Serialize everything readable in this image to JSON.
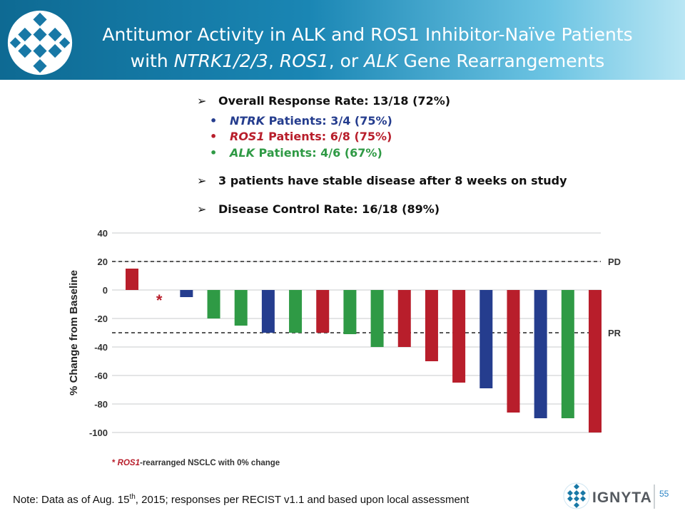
{
  "slide": {
    "title_line1": "Antitumor Activity in ALK and ROS1 Inhibitor-Naïve Patients",
    "title_line2_prefix": "with ",
    "title_line2_italic1": "NTRK1/2/3",
    "title_line2_sep1": ", ",
    "title_line2_italic2": "ROS1",
    "title_line2_sep2": ", or ",
    "title_line2_italic3": "ALK",
    "title_line2_suffix": " Gene Rearrangements",
    "page_number": "55",
    "brand_name": "IGNYTA",
    "footnote_prefix": "Note: Data as of Aug. 15",
    "footnote_sup": "th",
    "footnote_suffix": ", 2015; responses per RECIST v1.1 and based upon local assessment"
  },
  "bullets": {
    "arrow_glyph": "➢",
    "dot_glyph": "•",
    "orr": "Overall Response Rate: 13/18 (72%)",
    "ntrk_name": "NTRK",
    "ntrk_text": " Patients: 3/4 (75%)",
    "ros1_name": "ROS1",
    "ros1_text": " Patients: 6/8 (75%)",
    "alk_name": "ALK",
    "alk_text": " Patients: 4/6 (67%)",
    "stable": "3 patients have stable disease after 8 weeks on study",
    "dcr": "Disease Control Rate: 16/18 (89%)"
  },
  "colors": {
    "NTRK": "#253d8e",
    "ROS1": "#b81e2b",
    "ALK": "#2f9a45",
    "header_start": "#0e6a93",
    "header_end": "#b9e6f4"
  },
  "chart_data": {
    "type": "bar",
    "ylabel": "% Change from Baseline",
    "ylim": [
      -100,
      40
    ],
    "yticks": [
      40,
      20,
      0,
      -20,
      -40,
      -60,
      -80,
      -100
    ],
    "gridlines": true,
    "reference_lines": [
      {
        "label": "PD",
        "value": 20
      },
      {
        "label": "PR",
        "value": -30
      }
    ],
    "bars": [
      {
        "value": 15,
        "group": "ROS1"
      },
      {
        "value": 0,
        "group": "ROS1",
        "marker": "*"
      },
      {
        "value": -5,
        "group": "NTRK"
      },
      {
        "value": -20,
        "group": "ALK"
      },
      {
        "value": -25,
        "group": "ALK"
      },
      {
        "value": -30,
        "group": "NTRK"
      },
      {
        "value": -30,
        "group": "ALK"
      },
      {
        "value": -30,
        "group": "ROS1"
      },
      {
        "value": -31,
        "group": "ALK"
      },
      {
        "value": -40,
        "group": "ALK"
      },
      {
        "value": -40,
        "group": "ROS1"
      },
      {
        "value": -50,
        "group": "ROS1"
      },
      {
        "value": -65,
        "group": "ROS1"
      },
      {
        "value": -69,
        "group": "NTRK"
      },
      {
        "value": -86,
        "group": "ROS1"
      },
      {
        "value": -90,
        "group": "NTRK"
      },
      {
        "value": -90,
        "group": "ALK"
      },
      {
        "value": -100,
        "group": "ROS1"
      }
    ],
    "footnote_star": "*",
    "footnote_italic": "ROS1",
    "footnote_text": "-rearranged NSCLC with 0% change"
  }
}
